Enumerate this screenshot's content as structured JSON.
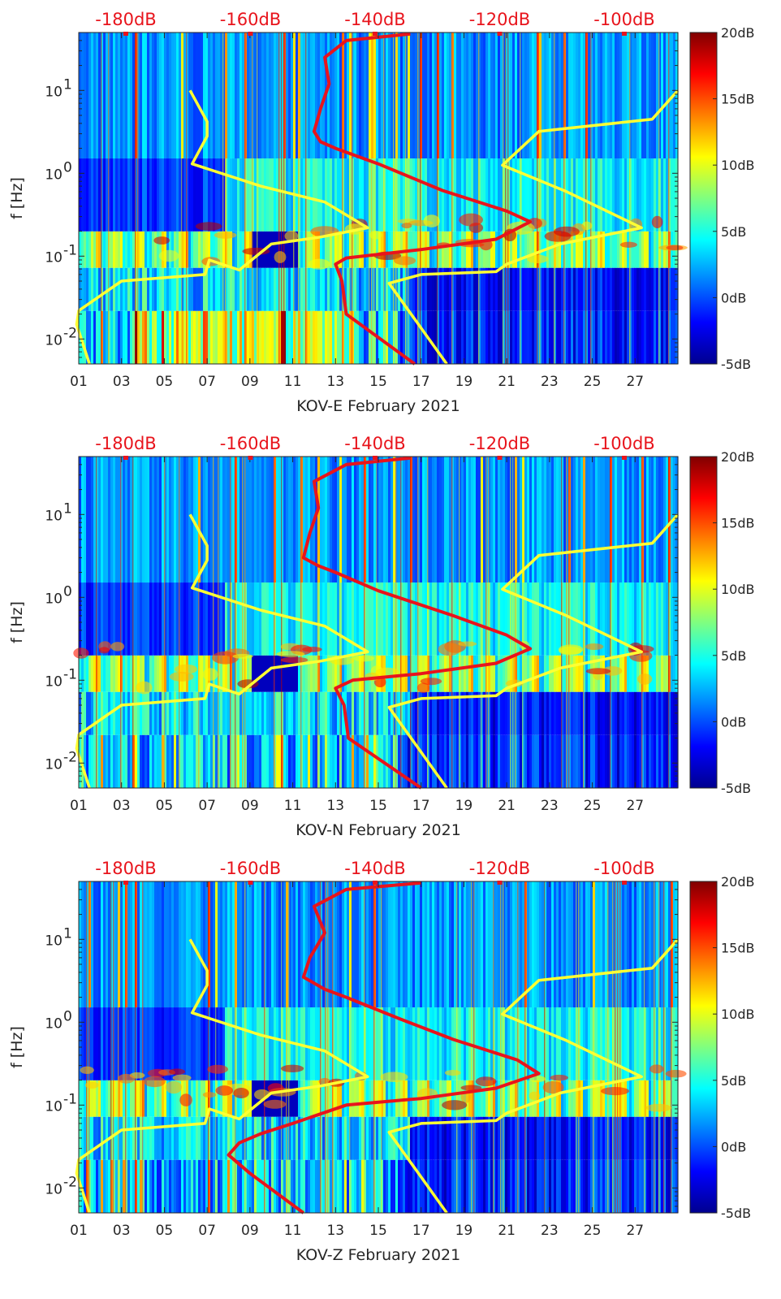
{
  "chart_data": [
    {
      "type": "heatmap",
      "title": "",
      "xlabel": "KOV-E February 2021",
      "ylabel": "f [Hz]",
      "x_ticks": [
        "01",
        "03",
        "05",
        "07",
        "09",
        "11",
        "13",
        "15",
        "17",
        "19",
        "21",
        "23",
        "25",
        "27"
      ],
      "x_range": [
        1,
        29
      ],
      "y_scale": "log",
      "y_range": [
        0.005,
        50
      ],
      "y_ticks": [
        {
          "base": "10",
          "exp": "1",
          "value": 10
        },
        {
          "base": "10",
          "exp": "0",
          "value": 1
        },
        {
          "base": "10",
          "exp": "-1",
          "value": 0.1
        },
        {
          "base": "10",
          "exp": "-2",
          "value": 0.01
        }
      ],
      "top_axis_labels": [
        "-180dB",
        "-160dB",
        "-140dB",
        "-120dB",
        "-100dB"
      ],
      "colorbar": {
        "labels": [
          "20dB",
          "15dB",
          "10dB",
          "5dB",
          "0dB",
          "-5dB"
        ],
        "range": [
          -5,
          20
        ],
        "colormap": "jet"
      },
      "series": [
        {
          "color": "#ffff33",
          "points": [
            [
              6.2,
              10
            ],
            [
              7.0,
              4.2
            ],
            [
              7.0,
              2.8
            ],
            [
              6.3,
              1.3
            ],
            [
              9.5,
              0.7
            ],
            [
              12.5,
              0.45
            ],
            [
              14.5,
              0.22
            ],
            [
              12.3,
              0.17
            ],
            [
              10.0,
              0.14
            ],
            [
              8.5,
              0.068
            ],
            [
              7.1,
              0.09
            ],
            [
              6.9,
              0.06
            ],
            [
              3.0,
              0.05
            ],
            [
              1.0,
              0.022
            ],
            [
              0.9,
              0.015
            ],
            [
              1.5,
              0.005
            ]
          ]
        },
        {
          "color": "#ffff33",
          "points": [
            [
              29,
              10
            ],
            [
              27.8,
              4.5
            ],
            [
              22.5,
              3.2
            ],
            [
              20.8,
              1.25
            ],
            [
              23.8,
              0.6
            ],
            [
              27.3,
              0.22
            ],
            [
              23.5,
              0.14
            ],
            [
              21.0,
              0.08
            ],
            [
              20.5,
              0.065
            ],
            [
              17.0,
              0.06
            ],
            [
              15.5,
              0.047
            ],
            [
              18.2,
              0.005
            ]
          ]
        },
        {
          "color": "#e8141c",
          "points": [
            [
              16.5,
              48
            ],
            [
              13.5,
              40
            ],
            [
              12.5,
              25
            ],
            [
              12.7,
              12
            ],
            [
              12.3,
              6
            ],
            [
              12.0,
              3.2
            ],
            [
              12.3,
              2.4
            ],
            [
              13.0,
              2.0
            ],
            [
              15.0,
              1.3
            ],
            [
              18.0,
              0.62
            ],
            [
              21.0,
              0.35
            ],
            [
              22.1,
              0.26
            ],
            [
              20.5,
              0.16
            ],
            [
              17.0,
              0.12
            ],
            [
              13.5,
              0.095
            ],
            [
              13.0,
              0.08
            ],
            [
              13.3,
              0.05
            ],
            [
              13.5,
              0.02
            ],
            [
              16.7,
              0.005
            ]
          ]
        }
      ]
    },
    {
      "type": "heatmap",
      "title": "",
      "xlabel": "KOV-N February 2021",
      "ylabel": "f [Hz]",
      "x_ticks": [
        "01",
        "03",
        "05",
        "07",
        "09",
        "11",
        "13",
        "15",
        "17",
        "19",
        "21",
        "23",
        "25",
        "27"
      ],
      "x_range": [
        1,
        29
      ],
      "y_scale": "log",
      "y_range": [
        0.005,
        50
      ],
      "y_ticks": [
        {
          "base": "10",
          "exp": "1",
          "value": 10
        },
        {
          "base": "10",
          "exp": "0",
          "value": 1
        },
        {
          "base": "10",
          "exp": "-1",
          "value": 0.1
        },
        {
          "base": "10",
          "exp": "-2",
          "value": 0.01
        }
      ],
      "top_axis_labels": [
        "-180dB",
        "-160dB",
        "-140dB",
        "-120dB",
        "-100dB"
      ],
      "colorbar": {
        "labels": [
          "20dB",
          "15dB",
          "10dB",
          "5dB",
          "0dB",
          "-5dB"
        ],
        "range": [
          -5,
          20
        ],
        "colormap": "jet"
      },
      "series": [
        {
          "color": "#ffff33",
          "points": [
            [
              6.2,
              10
            ],
            [
              7.0,
              4.2
            ],
            [
              7.0,
              2.8
            ],
            [
              6.3,
              1.3
            ],
            [
              9.5,
              0.7
            ],
            [
              12.5,
              0.45
            ],
            [
              14.5,
              0.22
            ],
            [
              12.3,
              0.17
            ],
            [
              10.0,
              0.14
            ],
            [
              8.5,
              0.068
            ],
            [
              7.1,
              0.09
            ],
            [
              6.9,
              0.06
            ],
            [
              3.0,
              0.05
            ],
            [
              1.0,
              0.022
            ],
            [
              0.9,
              0.015
            ],
            [
              1.5,
              0.005
            ]
          ]
        },
        {
          "color": "#ffff33",
          "points": [
            [
              29,
              10
            ],
            [
              27.8,
              4.5
            ],
            [
              22.5,
              3.2
            ],
            [
              20.8,
              1.25
            ],
            [
              23.8,
              0.6
            ],
            [
              27.3,
              0.22
            ],
            [
              23.5,
              0.14
            ],
            [
              21.0,
              0.08
            ],
            [
              20.5,
              0.065
            ],
            [
              17.0,
              0.06
            ],
            [
              15.5,
              0.047
            ],
            [
              18.2,
              0.005
            ]
          ]
        },
        {
          "color": "#e8141c",
          "points": [
            [
              16.5,
              48
            ],
            [
              13.5,
              40
            ],
            [
              12.0,
              25
            ],
            [
              12.2,
              12
            ],
            [
              11.8,
              6
            ],
            [
              11.5,
              3.0
            ],
            [
              12.2,
              2.4
            ],
            [
              13.0,
              2.0
            ],
            [
              15.0,
              1.2
            ],
            [
              18.5,
              0.6
            ],
            [
              21.0,
              0.35
            ],
            [
              22.1,
              0.24
            ],
            [
              20.5,
              0.16
            ],
            [
              17.0,
              0.12
            ],
            [
              13.8,
              0.1
            ],
            [
              13.0,
              0.08
            ],
            [
              13.4,
              0.05
            ],
            [
              13.6,
              0.02
            ],
            [
              17.0,
              0.005
            ]
          ]
        }
      ]
    },
    {
      "type": "heatmap",
      "title": "",
      "xlabel": "KOV-Z February 2021",
      "ylabel": "f [Hz]",
      "x_ticks": [
        "01",
        "03",
        "05",
        "07",
        "09",
        "11",
        "13",
        "15",
        "17",
        "19",
        "21",
        "23",
        "25",
        "27"
      ],
      "x_range": [
        1,
        29
      ],
      "y_scale": "log",
      "y_range": [
        0.005,
        50
      ],
      "y_ticks": [
        {
          "base": "10",
          "exp": "1",
          "value": 10
        },
        {
          "base": "10",
          "exp": "0",
          "value": 1
        },
        {
          "base": "10",
          "exp": "-1",
          "value": 0.1
        },
        {
          "base": "10",
          "exp": "-2",
          "value": 0.01
        }
      ],
      "top_axis_labels": [
        "-180dB",
        "-160dB",
        "-140dB",
        "-120dB",
        "-100dB"
      ],
      "colorbar": {
        "labels": [
          "20dB",
          "15dB",
          "10dB",
          "5dB",
          "0dB",
          "-5dB"
        ],
        "range": [
          -5,
          20
        ],
        "colormap": "jet"
      },
      "series": [
        {
          "color": "#ffff33",
          "points": [
            [
              6.2,
              10
            ],
            [
              7.0,
              4.2
            ],
            [
              7.0,
              2.8
            ],
            [
              6.3,
              1.3
            ],
            [
              9.5,
              0.7
            ],
            [
              12.5,
              0.45
            ],
            [
              14.5,
              0.22
            ],
            [
              12.3,
              0.17
            ],
            [
              10.0,
              0.14
            ],
            [
              8.5,
              0.068
            ],
            [
              7.1,
              0.09
            ],
            [
              6.9,
              0.06
            ],
            [
              3.0,
              0.05
            ],
            [
              1.0,
              0.022
            ],
            [
              0.9,
              0.015
            ],
            [
              1.5,
              0.005
            ]
          ]
        },
        {
          "color": "#ffff33",
          "points": [
            [
              29,
              10
            ],
            [
              27.8,
              4.5
            ],
            [
              22.5,
              3.2
            ],
            [
              20.8,
              1.25
            ],
            [
              23.8,
              0.6
            ],
            [
              27.3,
              0.22
            ],
            [
              23.5,
              0.14
            ],
            [
              21.0,
              0.08
            ],
            [
              20.5,
              0.065
            ],
            [
              17.0,
              0.06
            ],
            [
              15.5,
              0.047
            ],
            [
              18.2,
              0.005
            ]
          ]
        },
        {
          "color": "#e8141c",
          "points": [
            [
              17.0,
              48
            ],
            [
              13.5,
              40
            ],
            [
              12.0,
              25
            ],
            [
              12.5,
              12
            ],
            [
              11.8,
              6
            ],
            [
              11.5,
              3.5
            ],
            [
              12.5,
              2.5
            ],
            [
              13.5,
              2.0
            ],
            [
              16.0,
              1.1
            ],
            [
              18.5,
              0.62
            ],
            [
              21.5,
              0.35
            ],
            [
              22.5,
              0.24
            ],
            [
              20.5,
              0.16
            ],
            [
              17.0,
              0.12
            ],
            [
              13.5,
              0.1
            ],
            [
              11.0,
              0.06
            ],
            [
              9.5,
              0.045
            ],
            [
              8.5,
              0.035
            ],
            [
              8.0,
              0.025
            ],
            [
              9.0,
              0.015
            ],
            [
              11.5,
              0.005
            ]
          ]
        }
      ]
    }
  ]
}
